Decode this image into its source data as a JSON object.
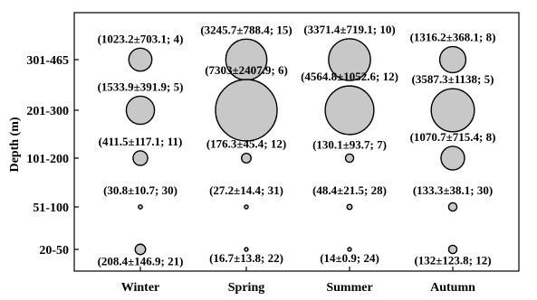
{
  "chart_data": {
    "type": "scatter",
    "subtype": "bubble",
    "xlabel": "",
    "ylabel": "Depth (m)",
    "x_categories": [
      "Winter",
      "Spring",
      "Summer",
      "Autumn"
    ],
    "y_categories": [
      "20-50",
      "51-100",
      "101-200",
      "201-300",
      "301-465"
    ],
    "bubble_color": "#c8c8c8",
    "bubble_stroke": "#000000",
    "points": [
      {
        "season": "Winter",
        "depth": "301-465",
        "mean": 1023.2,
        "sd": 703.1,
        "n": 4,
        "label": "(1023.2±703.1; 4)"
      },
      {
        "season": "Spring",
        "depth": "301-465",
        "mean": 3245.7,
        "sd": 788.4,
        "n": 15,
        "label": "(3245.7±788.4; 15)"
      },
      {
        "season": "Summer",
        "depth": "301-465",
        "mean": 3371.4,
        "sd": 719.1,
        "n": 10,
        "label": "(3371.4±719.1; 10)"
      },
      {
        "season": "Autumn",
        "depth": "301-465",
        "mean": 1316.2,
        "sd": 368.1,
        "n": 8,
        "label": "(1316.2±368.1; 8)"
      },
      {
        "season": "Winter",
        "depth": "201-300",
        "mean": 1533.9,
        "sd": 391.9,
        "n": 5,
        "label": "(1533.9±391.9; 5)"
      },
      {
        "season": "Spring",
        "depth": "201-300",
        "mean": 7303,
        "sd": 2407.9,
        "n": 6,
        "label": "(7303±2407.9; 6)"
      },
      {
        "season": "Summer",
        "depth": "201-300",
        "mean": 4564.8,
        "sd": 1052.6,
        "n": 12,
        "label": "(4564.8±1052.6; 12)"
      },
      {
        "season": "Autumn",
        "depth": "201-300",
        "mean": 3587.3,
        "sd": 1138,
        "n": 5,
        "label": "(3587.3±1138; 5)"
      },
      {
        "season": "Winter",
        "depth": "101-200",
        "mean": 411.5,
        "sd": 117.1,
        "n": 11,
        "label": "(411.5±117.1; 11)"
      },
      {
        "season": "Spring",
        "depth": "101-200",
        "mean": 176.3,
        "sd": 45.4,
        "n": 12,
        "label": "(176.3±45.4; 12)"
      },
      {
        "season": "Summer",
        "depth": "101-200",
        "mean": 130.1,
        "sd": 93.7,
        "n": 7,
        "label": "(130.1±93.7; 7)"
      },
      {
        "season": "Autumn",
        "depth": "101-200",
        "mean": 1070.7,
        "sd": 715.4,
        "n": 8,
        "label": "(1070.7±715.4; 8)"
      },
      {
        "season": "Winter",
        "depth": "51-100",
        "mean": 30.8,
        "sd": 10.7,
        "n": 30,
        "label": "(30.8±10.7; 30)"
      },
      {
        "season": "Spring",
        "depth": "51-100",
        "mean": 27.2,
        "sd": 14.4,
        "n": 31,
        "label": "(27.2±14.4; 31)"
      },
      {
        "season": "Summer",
        "depth": "51-100",
        "mean": 48.4,
        "sd": 21.5,
        "n": 28,
        "label": "(48.4±21.5; 28)"
      },
      {
        "season": "Autumn",
        "depth": "51-100",
        "mean": 133.3,
        "sd": 38.1,
        "n": 30,
        "label": "(133.3±38.1; 30)"
      },
      {
        "season": "Winter",
        "depth": "20-50",
        "mean": 208.4,
        "sd": 146.9,
        "n": 21,
        "label": "(208.4±146.9; 21)"
      },
      {
        "season": "Spring",
        "depth": "20-50",
        "mean": 16.7,
        "sd": 13.8,
        "n": 22,
        "label": "(16.7±13.8; 22)"
      },
      {
        "season": "Summer",
        "depth": "20-50",
        "mean": 14,
        "sd": 0.9,
        "n": 24,
        "label": "(14±0.9; 24)"
      },
      {
        "season": "Autumn",
        "depth": "20-50",
        "mean": 132,
        "sd": 123.8,
        "n": 12,
        "label": "(132±123.8; 12)"
      }
    ]
  }
}
